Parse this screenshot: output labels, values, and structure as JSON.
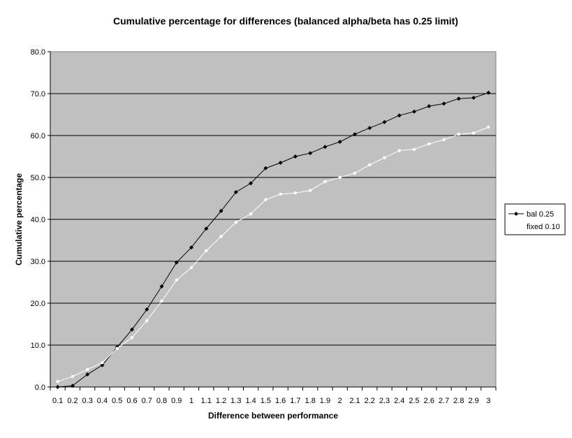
{
  "chart_data": {
    "type": "line",
    "title": "Cumulative percentage for differences (balanced alpha/beta has 0.25 limit)",
    "xlabel": "Difference between performance",
    "ylabel": "Cumulative percentage",
    "categories": [
      "0.1",
      "0.2",
      "0.3",
      "0.4",
      "0.5",
      "0.6",
      "0.7",
      "0.8",
      "0.9",
      "1",
      "1.1",
      "1.2",
      "1.3",
      "1.4",
      "1.5",
      "1.6",
      "1.7",
      "1.8",
      "1.9",
      "2",
      "2.1",
      "2.2",
      "2.3",
      "2.4",
      "2.5",
      "2.6",
      "2.7",
      "2.8",
      "2.9",
      "3"
    ],
    "y_ticks": [
      "0.0",
      "10.0",
      "20.0",
      "30.0",
      "40.0",
      "50.0",
      "60.0",
      "70.0",
      "80.0"
    ],
    "ylim": [
      0,
      80
    ],
    "grid": true,
    "legend_position": "right",
    "plot_background": "#c0c0c0",
    "series": [
      {
        "name": "bal 0.25",
        "color": "#000000",
        "marker": "diamond",
        "values": [
          0.0,
          0.3,
          3.0,
          5.2,
          9.5,
          13.7,
          18.5,
          24.0,
          29.7,
          33.3,
          37.8,
          42.0,
          46.5,
          48.6,
          52.2,
          53.5,
          55.0,
          55.8,
          57.3,
          58.5,
          60.3,
          61.8,
          63.2,
          64.8,
          65.7,
          67.0,
          67.6,
          68.8,
          69.0,
          70.2
        ]
      },
      {
        "name": "fixed 0.10",
        "color": "#ffffff",
        "marker": "circle",
        "values": [
          1.3,
          2.5,
          4.2,
          5.8,
          9.2,
          11.8,
          15.8,
          20.5,
          25.5,
          28.5,
          32.5,
          35.9,
          39.3,
          41.3,
          44.7,
          46.0,
          46.3,
          46.9,
          49.0,
          50.0,
          51.0,
          53.0,
          54.7,
          56.4,
          56.7,
          58.0,
          59.0,
          60.3,
          60.6,
          62.0
        ]
      }
    ]
  }
}
